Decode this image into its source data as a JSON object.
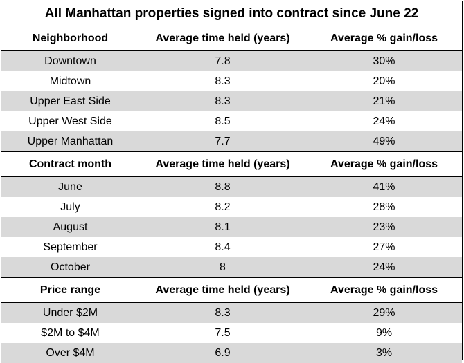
{
  "chart_data": {
    "type": "table",
    "title": "All Manhattan properties signed into contract since June 22",
    "sections": [
      {
        "header": [
          "Neighborhood",
          "Average time held (years)",
          "Average % gain/loss"
        ],
        "rows": [
          [
            "Downtown",
            "7.8",
            "30%"
          ],
          [
            "Midtown",
            "8.3",
            "20%"
          ],
          [
            "Upper East Side",
            "8.3",
            "21%"
          ],
          [
            "Upper West Side",
            "8.5",
            "24%"
          ],
          [
            "Upper Manhattan",
            "7.7",
            "49%"
          ]
        ]
      },
      {
        "header": [
          "Contract month",
          "Average time held (years)",
          "Average % gain/loss"
        ],
        "rows": [
          [
            "June",
            "8.8",
            "41%"
          ],
          [
            "July",
            "8.2",
            "28%"
          ],
          [
            "August",
            "8.1",
            "23%"
          ],
          [
            "September",
            "8.4",
            "27%"
          ],
          [
            "October",
            "8",
            "24%"
          ]
        ]
      },
      {
        "header": [
          "Price range",
          "Average time held (years)",
          "Average % gain/loss"
        ],
        "rows": [
          [
            "Under $2M",
            "8.3",
            "29%"
          ],
          [
            "$2M to $4M",
            "7.5",
            "9%"
          ],
          [
            "Over $4M",
            "6.9",
            "3%"
          ]
        ]
      }
    ]
  },
  "colors": {
    "shade": "#d9d9d9",
    "border": "#000000",
    "background": "#ffffff"
  }
}
